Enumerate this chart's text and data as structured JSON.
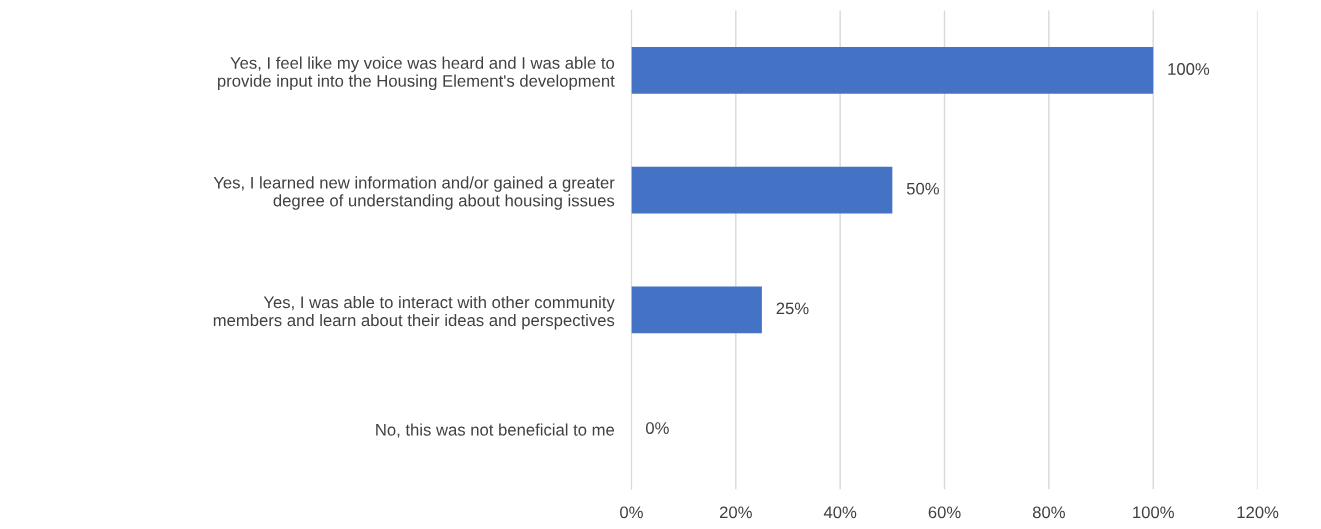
{
  "chart_data": {
    "type": "bar",
    "orientation": "horizontal",
    "categories": [
      "Yes, I feel like my voice was heard and I was able to\nprovide input into the Housing Element's development",
      "Yes, I learned new information and/or gained a greater\ndegree of understanding about housing issues",
      "Yes, I was able to interact with other community\nmembers and learn about their ideas and perspectives",
      "No, this was not beneficial to me"
    ],
    "values": [
      100,
      50,
      25,
      0
    ],
    "value_labels": [
      "100%",
      "50%",
      "25%",
      "0%"
    ],
    "color": "#4472c4",
    "xlim": [
      0,
      120
    ],
    "xticks": [
      {
        "value": 0,
        "label": "0%"
      },
      {
        "value": 20,
        "label": "20%"
      },
      {
        "value": 40,
        "label": "40%"
      },
      {
        "value": 60,
        "label": "60%"
      },
      {
        "value": 80,
        "label": "80%"
      },
      {
        "value": 100,
        "label": "100%"
      },
      {
        "value": 120,
        "label": "120%"
      }
    ],
    "grid": "x",
    "legend": false
  }
}
